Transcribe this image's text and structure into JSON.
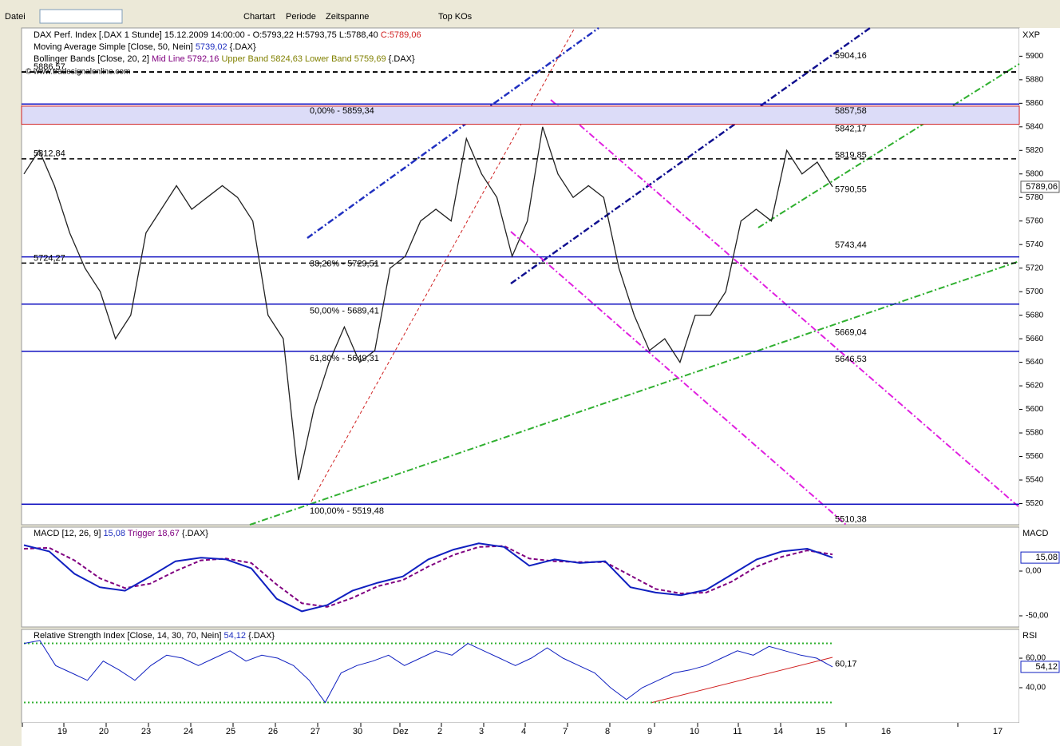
{
  "toolbar": {
    "menus": [
      "Datei",
      "Chartart",
      "Periode",
      "Zeitspanne"
    ],
    "top_kos": "Top KOs"
  },
  "price_panel": {
    "header": {
      "symbol": "DAX Perf. Index [.DAX  1 Stunde] 15.12.2009 14:00:00 - O:5793,22 H:5793,75 L:5788,40",
      "close": "C:5789,06"
    },
    "ma": {
      "name": "Moving Average Simple [Close, 50, Nein]",
      "value": "5739,02",
      "source": "{.DAX}"
    },
    "bollinger": {
      "name": "Bollinger Bands [Close, 20, 2]",
      "mid": "Mid Line 5792,16",
      "upper": "Upper Band 5824,63",
      "lower": "Lower Band 5759,69",
      "source": "{.DAX}"
    },
    "copyright": "© www.tradesignalonline.com",
    "axis_title": "XXP",
    "ylim": [
      5502,
      5924
    ],
    "yticks": [
      5520,
      5540,
      5560,
      5580,
      5600,
      5620,
      5640,
      5660,
      5680,
      5700,
      5720,
      5740,
      5760,
      5780,
      5800,
      5820,
      5840,
      5860,
      5880,
      5900
    ],
    "closes": [
      5800,
      5820,
      5790,
      5750,
      5720,
      5700,
      5660,
      5680,
      5750,
      5770,
      5790,
      5770,
      5780,
      5790,
      5780,
      5760,
      5680,
      5660,
      5540,
      5600,
      5640,
      5670,
      5640,
      5650,
      5720,
      5730,
      5760,
      5770,
      5760,
      5830,
      5800,
      5780,
      5730,
      5760,
      5840,
      5800,
      5780,
      5790,
      5780,
      5720,
      5680,
      5650,
      5660,
      5640,
      5680,
      5680,
      5700,
      5760,
      5770,
      5760,
      5820,
      5800,
      5810,
      5789.06
    ],
    "current": {
      "value": 5789.06,
      "label": "5789,06"
    },
    "fib_levels": [
      {
        "value": 5859.34,
        "label": "0,00% - 5859,34"
      },
      {
        "value": 5729.51,
        "label": "38,20% - 5729,51"
      },
      {
        "value": 5689.41,
        "label": "50,00% - 5689,41"
      },
      {
        "value": 5649.31,
        "label": "61,80% - 5649,31"
      },
      {
        "value": 5519.48,
        "label": "100,00% - 5519,48"
      }
    ],
    "right_levels": [
      {
        "value": 5904.16,
        "label": "5904,16",
        "color": "#2020a0"
      },
      {
        "value": 5857.58,
        "label": "5857,58",
        "color": "#d02020"
      },
      {
        "value": 5842.17,
        "label": "5842,17",
        "color": "#d02020"
      },
      {
        "value": 5819.85,
        "label": "5819,85",
        "color": "#d02020"
      },
      {
        "value": 5790.55,
        "label": "5790,55",
        "color": "#30b030"
      },
      {
        "value": 5743.44,
        "label": "5743,44",
        "color": "#000000"
      },
      {
        "value": 5669.04,
        "label": "5669,04",
        "color": "#30b030"
      },
      {
        "value": 5646.53,
        "label": "5646,53",
        "color": "#d02020"
      },
      {
        "value": 5510.38,
        "label": "5510,38",
        "color": "#d02020"
      }
    ],
    "left_levels": [
      {
        "value": 5886.57,
        "label": "5886,57"
      },
      {
        "value": 5812.84,
        "label": "5812,84"
      },
      {
        "value": 5724.27,
        "label": "5724,27"
      }
    ]
  },
  "macd_panel": {
    "name": "MACD [12, 26, 9]",
    "value": "15,08",
    "trigger": "Trigger 18,67",
    "source": "{.DAX}",
    "axis_title": "MACD",
    "ylim": [
      -62.5,
      49.1
    ],
    "yticks": [
      {
        "value": 0,
        "label": "0,00"
      },
      {
        "value": -50,
        "label": "-50,00"
      }
    ],
    "macd": [
      29,
      22,
      -3,
      -18,
      -22,
      -6,
      11,
      15,
      13,
      3,
      -31,
      -45,
      -38,
      -22,
      -13,
      -6,
      13,
      24,
      31,
      27,
      6,
      13,
      9,
      11,
      -18,
      -24,
      -27,
      -21,
      -4,
      13,
      22,
      25,
      15.08
    ],
    "signal": [
      25,
      26,
      12,
      -8,
      -19,
      -14,
      0,
      12,
      14,
      9,
      -15,
      -36,
      -40,
      -30,
      -17,
      -10,
      5,
      18,
      27,
      28,
      14,
      11,
      10,
      10,
      -5,
      -20,
      -25,
      -24,
      -12,
      5,
      16,
      23,
      18.67
    ],
    "current": {
      "value": 15.08,
      "label": "15,08"
    }
  },
  "rsi_panel": {
    "name": "Relative Strength Index [Close, 14, 30, 70, Nein]",
    "value": "54,12",
    "source": "{.DAX}",
    "axis_title": "RSI",
    "ylim": [
      16.2,
      79.5
    ],
    "yticks": [
      {
        "value": 60,
        "label": "60,00"
      },
      {
        "value": 40,
        "label": "40,00"
      }
    ],
    "bands": [
      70,
      30
    ],
    "rsi": [
      70,
      72,
      55,
      50,
      45,
      58,
      52,
      45,
      55,
      62,
      60,
      55,
      60,
      65,
      58,
      62,
      60,
      55,
      45,
      30,
      50,
      55,
      58,
      62,
      55,
      60,
      65,
      62,
      70,
      65,
      60,
      55,
      60,
      67,
      60,
      55,
      50,
      40,
      32,
      40,
      45,
      50,
      52,
      55,
      60,
      65,
      62,
      68,
      65,
      62,
      60,
      54.12
    ],
    "current": {
      "value": 54.12,
      "label": "54,12"
    },
    "trend_label": {
      "value": 60.17,
      "label": "60,17"
    }
  },
  "x_axis": {
    "labels": [
      "19",
      "20",
      "23",
      "24",
      "25",
      "26",
      "27",
      "30",
      "Dez",
      "2",
      "3",
      "4",
      "7",
      "8",
      "9",
      "10",
      "11",
      "14",
      "15",
      "16",
      "17"
    ]
  }
}
